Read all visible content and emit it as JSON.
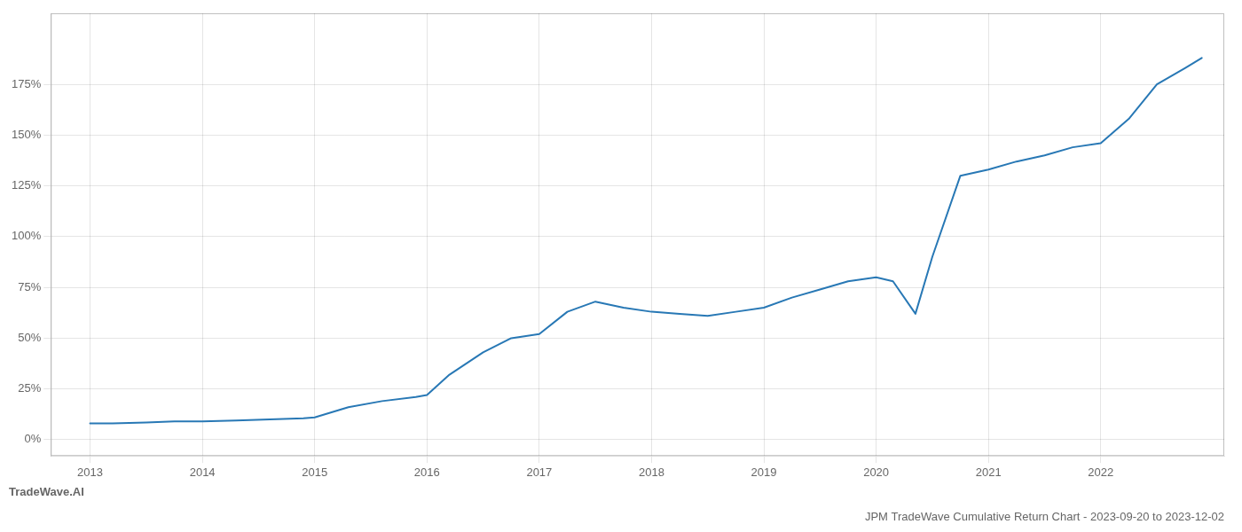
{
  "chart_data": {
    "type": "line",
    "title": "JPM TradeWave Cumulative Return Chart - 2023-09-20 to 2023-12-02",
    "annotations": [
      "TradeWave.AI"
    ],
    "x": [
      2013.0,
      2013.2,
      2013.5,
      2013.75,
      2014.0,
      2014.3,
      2014.6,
      2014.9,
      2015.0,
      2015.3,
      2015.6,
      2015.9,
      2016.0,
      2016.2,
      2016.5,
      2016.75,
      2017.0,
      2017.25,
      2017.5,
      2017.75,
      2018.0,
      2018.25,
      2018.5,
      2018.75,
      2019.0,
      2019.25,
      2019.5,
      2019.75,
      2020.0,
      2020.15,
      2020.35,
      2020.5,
      2020.75,
      2021.0,
      2021.25,
      2021.5,
      2021.75,
      2022.0,
      2022.25,
      2022.5,
      2022.75,
      2022.9
    ],
    "values": [
      8,
      8,
      8.5,
      9,
      9,
      9.5,
      10,
      10.5,
      11,
      16,
      19,
      21,
      22,
      32,
      43,
      50,
      52,
      63,
      68,
      65,
      63,
      62,
      61,
      63,
      65,
      70,
      74,
      78,
      80,
      78,
      62,
      90,
      130,
      133,
      137,
      140,
      144,
      146,
      158,
      175,
      183,
      188
    ],
    "color": "#2878b5",
    "xlim": [
      2012.65,
      2023.1
    ],
    "xticks": [
      2013,
      2014,
      2015,
      2016,
      2017,
      2018,
      2019,
      2020,
      2021,
      2022
    ],
    "ylim": [
      -8,
      210
    ],
    "yticks": [
      {
        "value": 0,
        "label": "0%"
      },
      {
        "value": 25,
        "label": "25%"
      },
      {
        "value": 50,
        "label": "50%"
      },
      {
        "value": 75,
        "label": "75%"
      },
      {
        "value": 100,
        "label": "100%"
      },
      {
        "value": 125,
        "label": "125%"
      },
      {
        "value": 150,
        "label": "150%"
      },
      {
        "value": 175,
        "label": "175%"
      }
    ],
    "grid": true
  }
}
